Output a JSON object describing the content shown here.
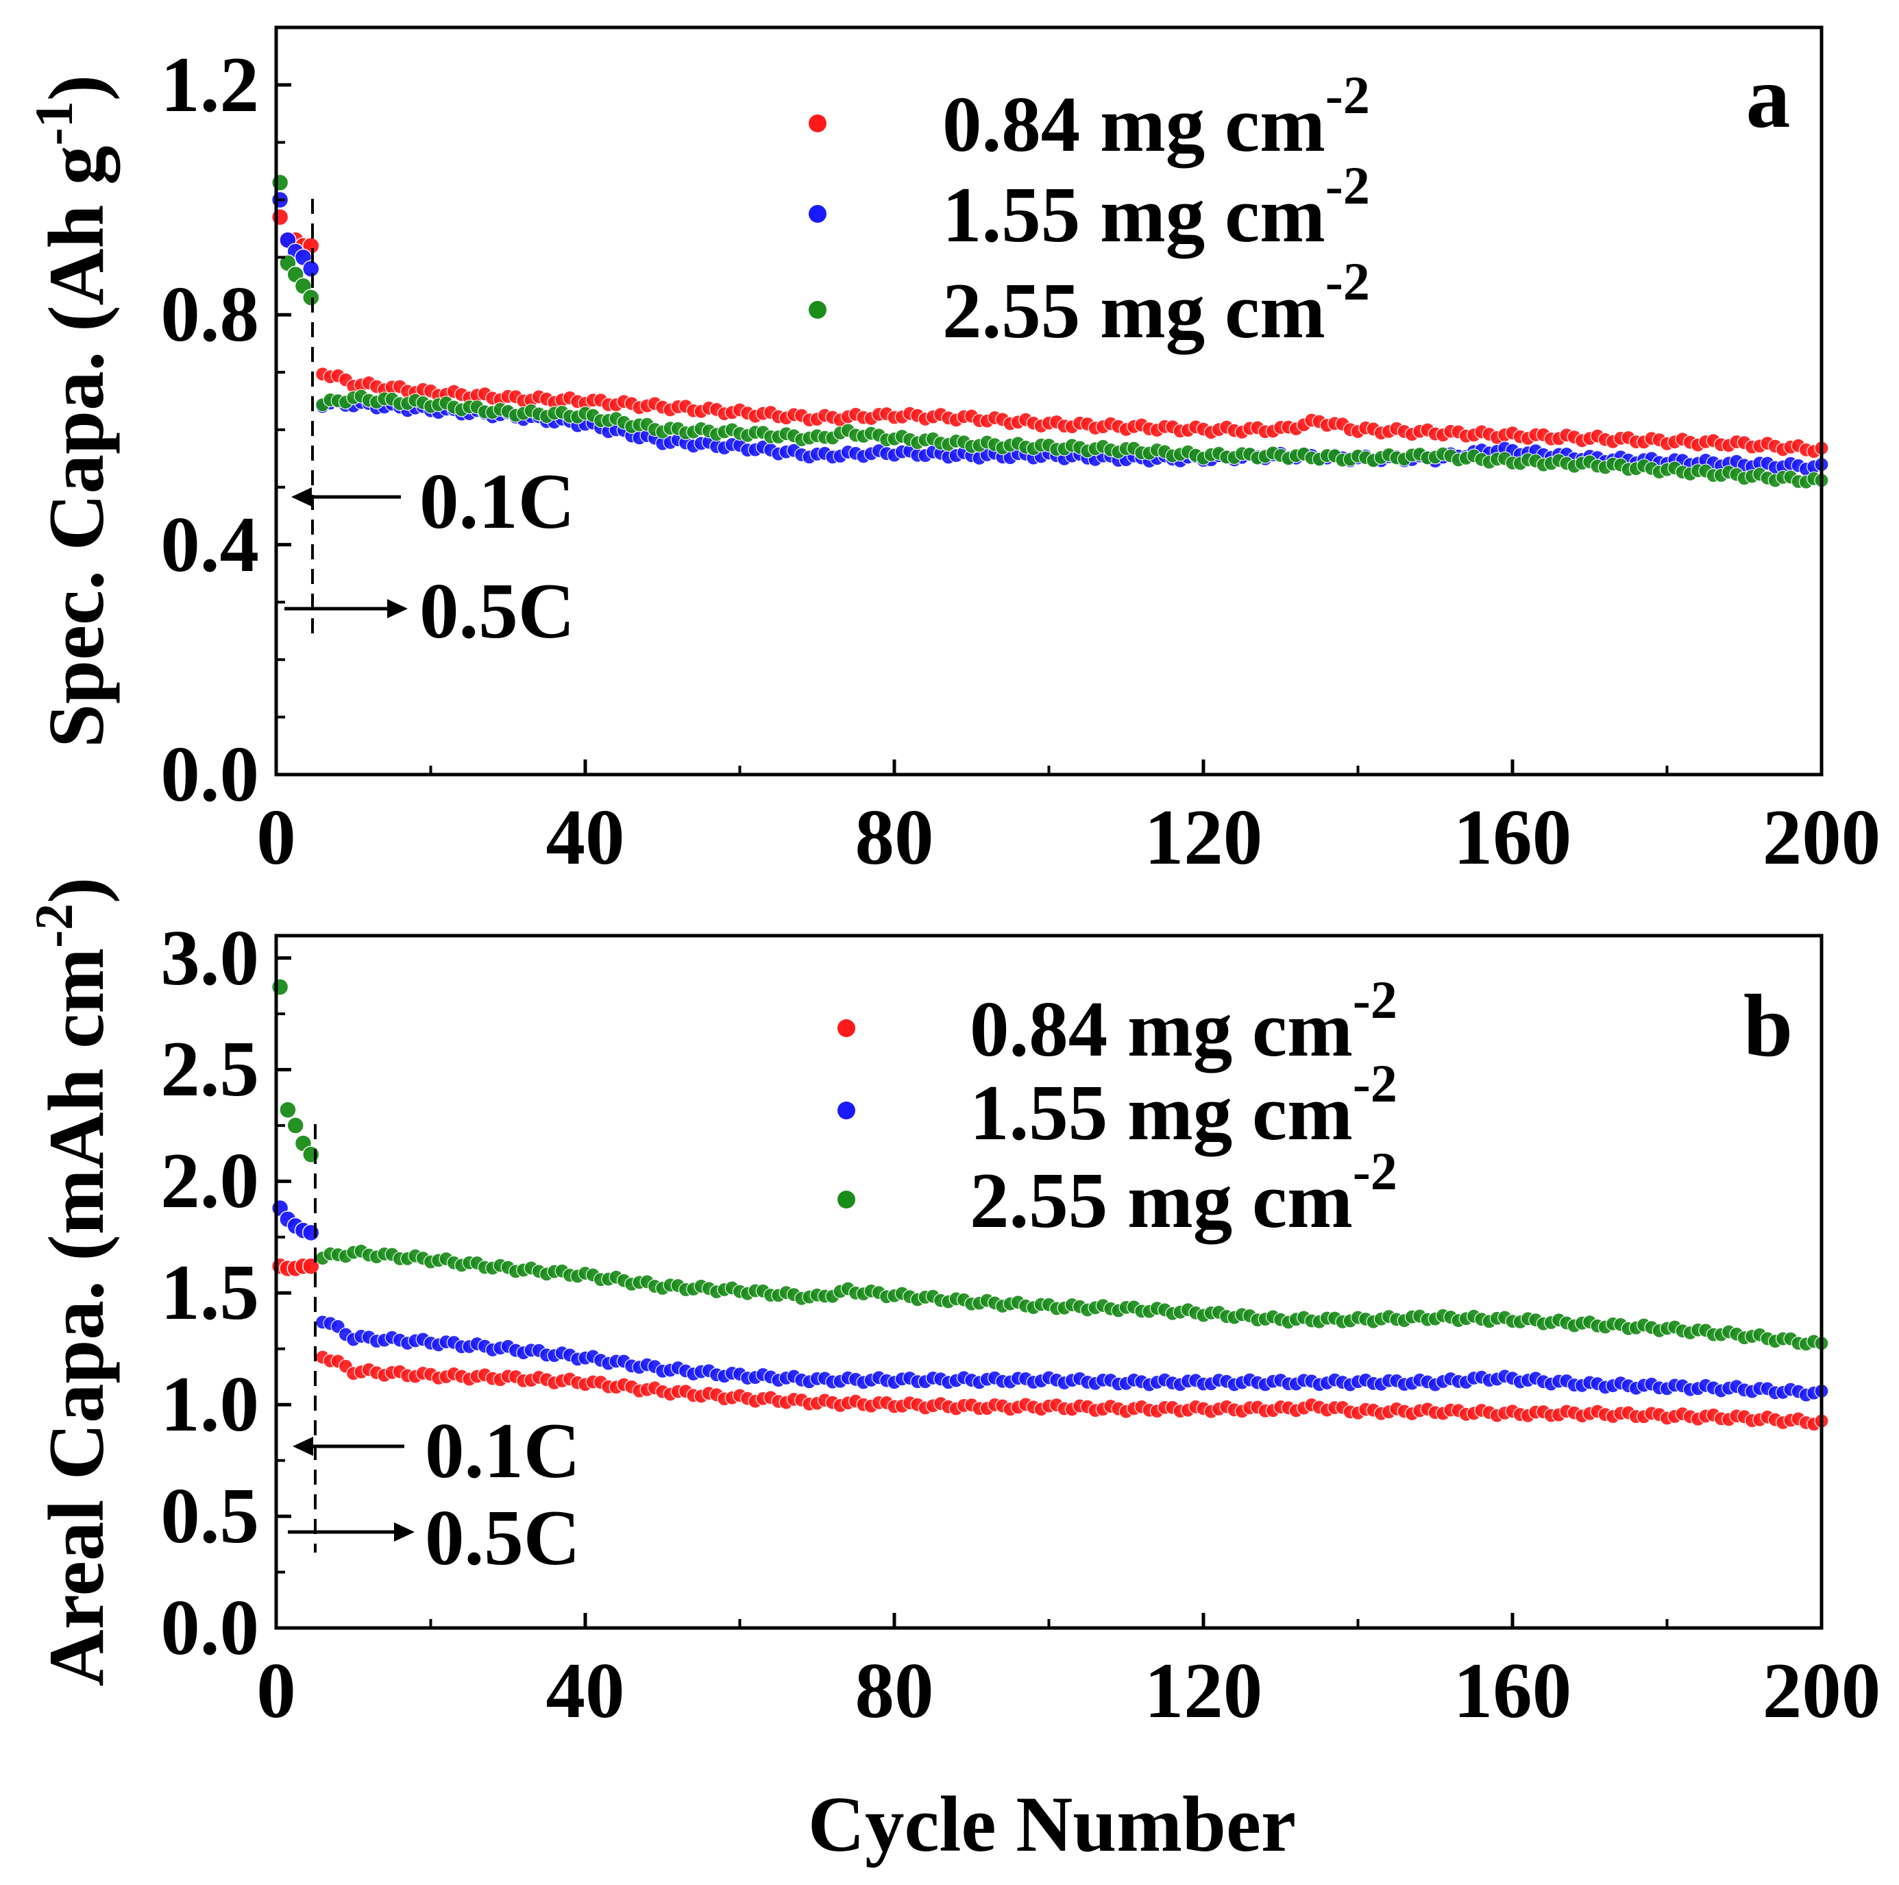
{
  "chart_data": [
    {
      "type": "scatter",
      "panel_label": "a",
      "title": "",
      "xlabel": "",
      "ylabel": "Spec. Capa. (Ah g",
      "ylabel_sup": "-1",
      "ylabel_close": ")",
      "xlim": [
        0,
        200
      ],
      "ylim": [
        0.0,
        1.3
      ],
      "xticks": [
        "0",
        "40",
        "80",
        "120",
        "160",
        "200"
      ],
      "yticks": [
        "0.0",
        "0.4",
        "0.8",
        "1.2"
      ],
      "legend_position": "top-right",
      "rate_divider_x": 5,
      "rate_labels": [
        "0.1C",
        "0.5C"
      ],
      "series": [
        {
          "name": "0.84 mg cm",
          "sup": "-2",
          "color": "#ff1a1a",
          "first_cycles": [
            0.97,
            0.93,
            0.93,
            0.92,
            0.92
          ],
          "x": [
            6,
            10,
            20,
            30,
            40,
            50,
            60,
            70,
            80,
            90,
            100,
            110,
            120,
            130,
            135,
            140,
            150,
            160,
            170,
            180,
            190,
            200
          ],
          "values": [
            0.7,
            0.68,
            0.665,
            0.655,
            0.65,
            0.64,
            0.63,
            0.62,
            0.625,
            0.62,
            0.61,
            0.605,
            0.6,
            0.6,
            0.615,
            0.6,
            0.595,
            0.59,
            0.585,
            0.58,
            0.575,
            0.565
          ]
        },
        {
          "name": "1.55 mg cm",
          "sup": "-2",
          "color": "#1a1aff",
          "first_cycles": [
            1.0,
            0.93,
            0.91,
            0.9,
            0.88
          ],
          "x": [
            6,
            10,
            20,
            30,
            40,
            50,
            60,
            70,
            80,
            90,
            100,
            110,
            120,
            130,
            140,
            150,
            158,
            170,
            180,
            190,
            200
          ],
          "values": [
            0.645,
            0.645,
            0.635,
            0.625,
            0.61,
            0.58,
            0.57,
            0.555,
            0.56,
            0.555,
            0.555,
            0.55,
            0.55,
            0.555,
            0.55,
            0.55,
            0.565,
            0.55,
            0.545,
            0.54,
            0.535
          ]
        },
        {
          "name": "2.55 mg cm",
          "sup": "-2",
          "color": "#1a8c1a",
          "first_cycles": [
            1.03,
            0.89,
            0.87,
            0.85,
            0.83
          ],
          "x": [
            6,
            10,
            20,
            30,
            40,
            50,
            60,
            70,
            74,
            80,
            90,
            100,
            110,
            120,
            130,
            140,
            150,
            160,
            170,
            180,
            190,
            200
          ],
          "values": [
            0.645,
            0.655,
            0.645,
            0.63,
            0.625,
            0.6,
            0.595,
            0.585,
            0.595,
            0.585,
            0.575,
            0.57,
            0.565,
            0.555,
            0.555,
            0.55,
            0.555,
            0.545,
            0.54,
            0.53,
            0.52,
            0.51
          ]
        }
      ]
    },
    {
      "type": "scatter",
      "panel_label": "b",
      "title": "",
      "xlabel": "Cycle Number",
      "ylabel": "Areal Capa. (mAh cm",
      "ylabel_sup": "-2",
      "ylabel_close": ")",
      "xlim": [
        0,
        200
      ],
      "ylim": [
        0.0,
        3.1
      ],
      "xticks": [
        "0",
        "40",
        "80",
        "120",
        "160",
        "200"
      ],
      "yticks": [
        "0.0",
        "0.5",
        "1.0",
        "1.5",
        "2.0",
        "2.5",
        "3.0"
      ],
      "legend_position": "top-right",
      "rate_divider_x": 5,
      "rate_labels": [
        "0.1C",
        "0.5C"
      ],
      "series": [
        {
          "name": "0.84 mg cm",
          "sup": "-2",
          "color": "#ff1a1a",
          "first_cycles": [
            1.62,
            1.61,
            1.61,
            1.62,
            1.62
          ],
          "x": [
            6,
            10,
            20,
            30,
            40,
            50,
            60,
            70,
            80,
            90,
            100,
            110,
            120,
            130,
            135,
            140,
            150,
            160,
            170,
            180,
            190,
            200
          ],
          "values": [
            1.22,
            1.15,
            1.13,
            1.12,
            1.1,
            1.06,
            1.03,
            1.01,
            1.0,
            0.99,
            0.99,
            0.98,
            0.98,
            0.98,
            0.99,
            0.97,
            0.97,
            0.96,
            0.96,
            0.95,
            0.94,
            0.92
          ]
        },
        {
          "name": "1.55 mg cm",
          "sup": "-2",
          "color": "#1a1aff",
          "first_cycles": [
            1.88,
            1.83,
            1.8,
            1.78,
            1.77
          ],
          "x": [
            6,
            10,
            20,
            30,
            40,
            50,
            60,
            70,
            80,
            90,
            100,
            110,
            120,
            130,
            140,
            150,
            158,
            170,
            180,
            190,
            200
          ],
          "values": [
            1.38,
            1.3,
            1.28,
            1.25,
            1.21,
            1.16,
            1.13,
            1.11,
            1.11,
            1.11,
            1.11,
            1.1,
            1.1,
            1.1,
            1.1,
            1.1,
            1.12,
            1.09,
            1.08,
            1.07,
            1.05
          ]
        },
        {
          "name": "2.55 mg cm",
          "sup": "-2",
          "color": "#1a8c1a",
          "first_cycles": [
            2.87,
            2.32,
            2.25,
            2.17,
            2.12
          ],
          "x": [
            6,
            10,
            20,
            30,
            40,
            50,
            60,
            70,
            74,
            80,
            90,
            100,
            110,
            120,
            130,
            140,
            150,
            160,
            170,
            180,
            190,
            200
          ],
          "values": [
            1.66,
            1.68,
            1.65,
            1.61,
            1.58,
            1.53,
            1.51,
            1.48,
            1.51,
            1.49,
            1.46,
            1.44,
            1.43,
            1.41,
            1.38,
            1.38,
            1.39,
            1.38,
            1.36,
            1.34,
            1.31,
            1.27
          ]
        }
      ]
    }
  ]
}
